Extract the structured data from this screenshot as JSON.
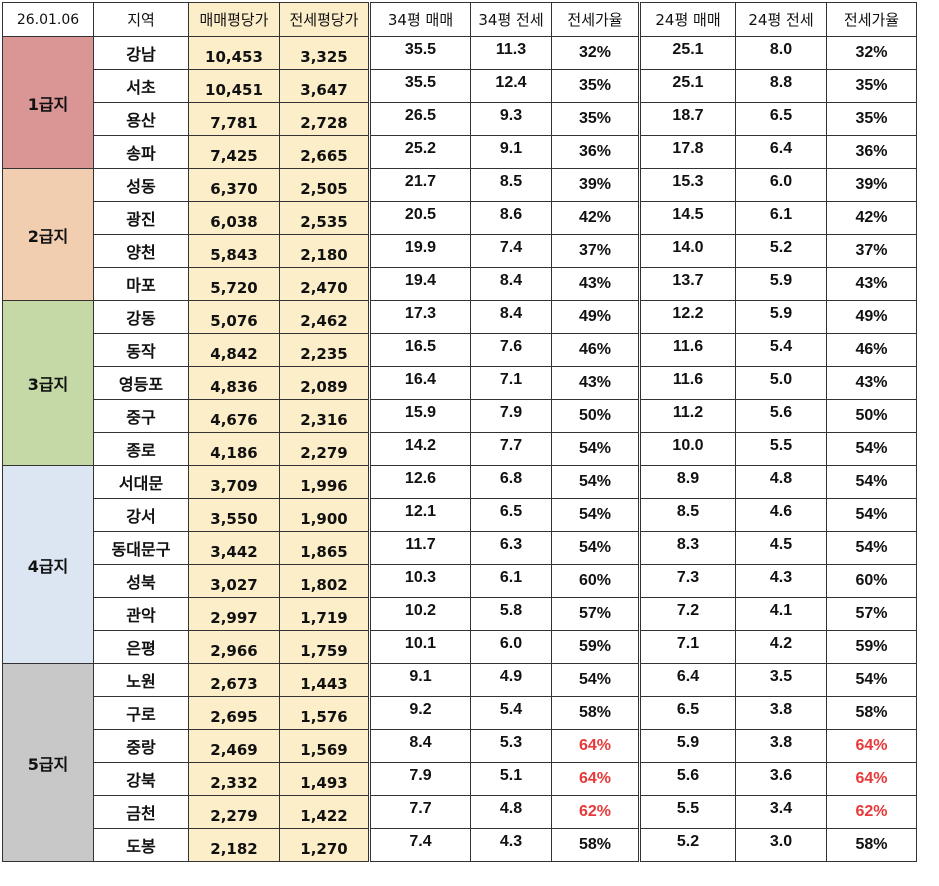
{
  "header": {
    "date": "26.01.06",
    "region": "지역",
    "sale_per_pyeong": "매매평당가",
    "jeonse_per_pyeong": "전세평당가",
    "sale_34": "34평 매매",
    "jeonse_34": "34평 전세",
    "ratio_34": "전세가율",
    "sale_24": "24평 매매",
    "jeonse_24": "24평 전세",
    "ratio_24": "전세가율"
  },
  "colors": {
    "tier1": "#d99694",
    "tier2": "#f2ceb1",
    "tier3": "#c4d9a6",
    "tier4": "#dce6f2",
    "tier5": "#c8c8c8",
    "price_bg": "#fbeec9",
    "high_ratio": "#e8393a"
  },
  "tiers": [
    {
      "label": "1급지",
      "color": "#d99694",
      "rows": [
        {
          "region": "강남",
          "sale": "10,453",
          "jeonse": "3,325",
          "s34": "35.5",
          "j34": "11.3",
          "r34": "32%",
          "s24": "25.1",
          "j24": "8.0",
          "r24": "32%"
        },
        {
          "region": "서초",
          "sale": "10,451",
          "jeonse": "3,647",
          "s34": "35.5",
          "j34": "12.4",
          "r34": "35%",
          "s24": "25.1",
          "j24": "8.8",
          "r24": "35%"
        },
        {
          "region": "용산",
          "sale": "7,781",
          "jeonse": "2,728",
          "s34": "26.5",
          "j34": "9.3",
          "r34": "35%",
          "s24": "18.7",
          "j24": "6.5",
          "r24": "35%"
        },
        {
          "region": "송파",
          "sale": "7,425",
          "jeonse": "2,665",
          "s34": "25.2",
          "j34": "9.1",
          "r34": "36%",
          "s24": "17.8",
          "j24": "6.4",
          "r24": "36%"
        }
      ]
    },
    {
      "label": "2급지",
      "color": "#f2ceb1",
      "rows": [
        {
          "region": "성동",
          "sale": "6,370",
          "jeonse": "2,505",
          "s34": "21.7",
          "j34": "8.5",
          "r34": "39%",
          "s24": "15.3",
          "j24": "6.0",
          "r24": "39%"
        },
        {
          "region": "광진",
          "sale": "6,038",
          "jeonse": "2,535",
          "s34": "20.5",
          "j34": "8.6",
          "r34": "42%",
          "s24": "14.5",
          "j24": "6.1",
          "r24": "42%"
        },
        {
          "region": "양천",
          "sale": "5,843",
          "jeonse": "2,180",
          "s34": "19.9",
          "j34": "7.4",
          "r34": "37%",
          "s24": "14.0",
          "j24": "5.2",
          "r24": "37%"
        },
        {
          "region": "마포",
          "sale": "5,720",
          "jeonse": "2,470",
          "s34": "19.4",
          "j34": "8.4",
          "r34": "43%",
          "s24": "13.7",
          "j24": "5.9",
          "r24": "43%"
        }
      ]
    },
    {
      "label": "3급지",
      "color": "#c4d9a6",
      "rows": [
        {
          "region": "강동",
          "sale": "5,076",
          "jeonse": "2,462",
          "s34": "17.3",
          "j34": "8.4",
          "r34": "49%",
          "s24": "12.2",
          "j24": "5.9",
          "r24": "49%"
        },
        {
          "region": "동작",
          "sale": "4,842",
          "jeonse": "2,235",
          "s34": "16.5",
          "j34": "7.6",
          "r34": "46%",
          "s24": "11.6",
          "j24": "5.4",
          "r24": "46%"
        },
        {
          "region": "영등포",
          "sale": "4,836",
          "jeonse": "2,089",
          "s34": "16.4",
          "j34": "7.1",
          "r34": "43%",
          "s24": "11.6",
          "j24": "5.0",
          "r24": "43%"
        },
        {
          "region": "중구",
          "sale": "4,676",
          "jeonse": "2,316",
          "s34": "15.9",
          "j34": "7.9",
          "r34": "50%",
          "s24": "11.2",
          "j24": "5.6",
          "r24": "50%"
        },
        {
          "region": "종로",
          "sale": "4,186",
          "jeonse": "2,279",
          "s34": "14.2",
          "j34": "7.7",
          "r34": "54%",
          "s24": "10.0",
          "j24": "5.5",
          "r24": "54%"
        }
      ]
    },
    {
      "label": "4급지",
      "color": "#dce6f2",
      "rows": [
        {
          "region": "서대문",
          "sale": "3,709",
          "jeonse": "1,996",
          "s34": "12.6",
          "j34": "6.8",
          "r34": "54%",
          "s24": "8.9",
          "j24": "4.8",
          "r24": "54%"
        },
        {
          "region": "강서",
          "sale": "3,550",
          "jeonse": "1,900",
          "s34": "12.1",
          "j34": "6.5",
          "r34": "54%",
          "s24": "8.5",
          "j24": "4.6",
          "r24": "54%"
        },
        {
          "region": "동대문구",
          "sale": "3,442",
          "jeonse": "1,865",
          "s34": "11.7",
          "j34": "6.3",
          "r34": "54%",
          "s24": "8.3",
          "j24": "4.5",
          "r24": "54%"
        },
        {
          "region": "성북",
          "sale": "3,027",
          "jeonse": "1,802",
          "s34": "10.3",
          "j34": "6.1",
          "r34": "60%",
          "s24": "7.3",
          "j24": "4.3",
          "r24": "60%"
        },
        {
          "region": "관악",
          "sale": "2,997",
          "jeonse": "1,719",
          "s34": "10.2",
          "j34": "5.8",
          "r34": "57%",
          "s24": "7.2",
          "j24": "4.1",
          "r24": "57%"
        },
        {
          "region": "은평",
          "sale": "2,966",
          "jeonse": "1,759",
          "s34": "10.1",
          "j34": "6.0",
          "r34": "59%",
          "s24": "7.1",
          "j24": "4.2",
          "r24": "59%"
        }
      ]
    },
    {
      "label": "5급지",
      "color": "#c8c8c8",
      "rows": [
        {
          "region": "노원",
          "sale": "2,673",
          "jeonse": "1,443",
          "s34": "9.1",
          "j34": "4.9",
          "r34": "54%",
          "s24": "6.4",
          "j24": "3.5",
          "r24": "54%"
        },
        {
          "region": "구로",
          "sale": "2,695",
          "jeonse": "1,576",
          "s34": "9.2",
          "j34": "5.4",
          "r34": "58%",
          "s24": "6.5",
          "j24": "3.8",
          "r24": "58%"
        },
        {
          "region": "중랑",
          "sale": "2,469",
          "jeonse": "1,569",
          "s34": "8.4",
          "j34": "5.3",
          "r34": "64%",
          "s24": "5.9",
          "j24": "3.8",
          "r24": "64%",
          "highlight": true
        },
        {
          "region": "강북",
          "sale": "2,332",
          "jeonse": "1,493",
          "s34": "7.9",
          "j34": "5.1",
          "r34": "64%",
          "s24": "5.6",
          "j24": "3.6",
          "r24": "64%",
          "highlight": true
        },
        {
          "region": "금천",
          "sale": "2,279",
          "jeonse": "1,422",
          "s34": "7.7",
          "j34": "4.8",
          "r34": "62%",
          "s24": "5.5",
          "j24": "3.4",
          "r24": "62%",
          "highlight": true
        },
        {
          "region": "도봉",
          "sale": "2,182",
          "jeonse": "1,270",
          "s34": "7.4",
          "j34": "4.3",
          "r34": "58%",
          "s24": "5.2",
          "j24": "3.0",
          "r24": "58%"
        }
      ]
    }
  ]
}
